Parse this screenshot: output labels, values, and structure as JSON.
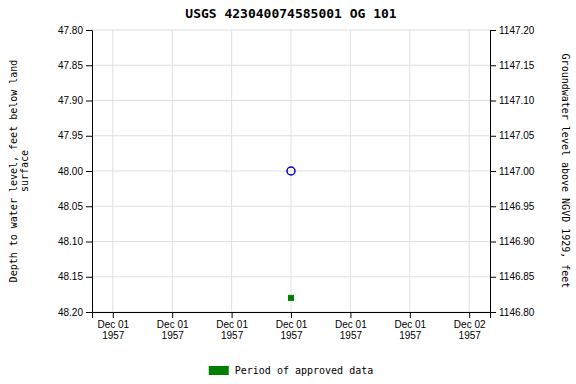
{
  "chart_data": {
    "type": "scatter",
    "title": "USGS 423040074585001 OG 101",
    "y_label": "Depth to water level, feet below land\nsurface",
    "y2_label": "Groundwater level above NGVD 1929, feet",
    "categories": [
      "Dec 01\n1957",
      "Dec 01\n1957",
      "Dec 01\n1957",
      "Dec 01\n1957",
      "Dec 01\n1957",
      "Dec 01\n1957",
      "Dec 02\n1957"
    ],
    "series": [
      {
        "color": "#0000cc",
        "marker": "circle-open",
        "values": [
          null,
          null,
          null,
          48.0,
          null,
          null,
          null
        ]
      },
      {
        "name": "Period of approved data",
        "color": "#008000",
        "marker": "square",
        "values": [
          null,
          null,
          null,
          48.18,
          null,
          null,
          null
        ]
      }
    ],
    "ylim": [
      48.2,
      47.8
    ],
    "yticks": [
      {
        "value": 47.8,
        "label": "47.80"
      },
      {
        "value": 47.85,
        "label": "47.85"
      },
      {
        "value": 47.9,
        "label": "47.90"
      },
      {
        "value": 47.95,
        "label": "47.95"
      },
      {
        "value": 48.0,
        "label": "48.00"
      },
      {
        "value": 48.05,
        "label": "48.05"
      },
      {
        "value": 48.1,
        "label": "48.10"
      },
      {
        "value": 48.15,
        "label": "48.15"
      },
      {
        "value": 48.2,
        "label": "48.20"
      }
    ],
    "y2lim": [
      1146.8,
      1147.2
    ],
    "y2ticks": [
      {
        "value": 1147.2,
        "label": "1147.20"
      },
      {
        "value": 1147.15,
        "label": "1147.15"
      },
      {
        "value": 1147.1,
        "label": "1147.10"
      },
      {
        "value": 1147.05,
        "label": "1147.05"
      },
      {
        "value": 1147.0,
        "label": "1147.00"
      },
      {
        "value": 1146.95,
        "label": "1146.95"
      },
      {
        "value": 1146.9,
        "label": "1146.90"
      },
      {
        "value": 1146.85,
        "label": "1146.85"
      },
      {
        "value": 1146.8,
        "label": "1146.80"
      }
    ],
    "grid": true
  }
}
